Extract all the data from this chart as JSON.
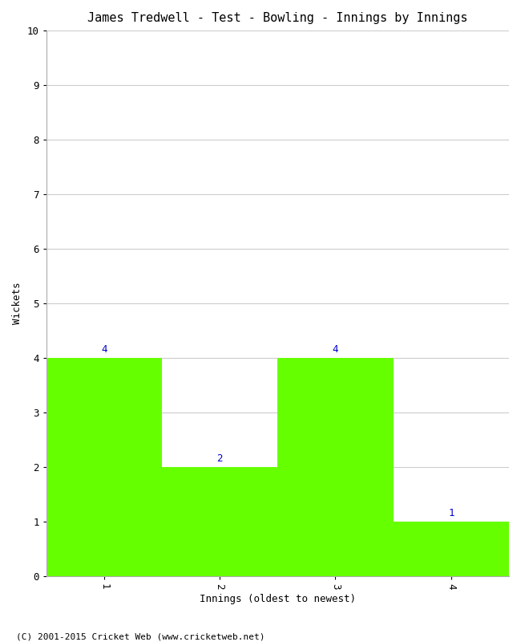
{
  "title": "James Tredwell - Test - Bowling - Innings by Innings",
  "xlabel": "Innings (oldest to newest)",
  "ylabel": "Wickets",
  "categories": [
    1,
    2,
    3,
    4
  ],
  "values": [
    4,
    2,
    4,
    1
  ],
  "bar_color": "#66ff00",
  "label_color": "#0000cc",
  "ylim": [
    0,
    10
  ],
  "xlim": [
    0.5,
    4.5
  ],
  "yticks": [
    0,
    1,
    2,
    3,
    4,
    5,
    6,
    7,
    8,
    9,
    10
  ],
  "xticks": [
    1,
    2,
    3,
    4
  ],
  "grid_color": "#cccccc",
  "background_color": "#ffffff",
  "footer": "(C) 2001-2015 Cricket Web (www.cricketweb.net)",
  "title_fontsize": 11,
  "axis_label_fontsize": 9,
  "tick_fontsize": 9,
  "bar_label_fontsize": 9,
  "footer_fontsize": 8
}
